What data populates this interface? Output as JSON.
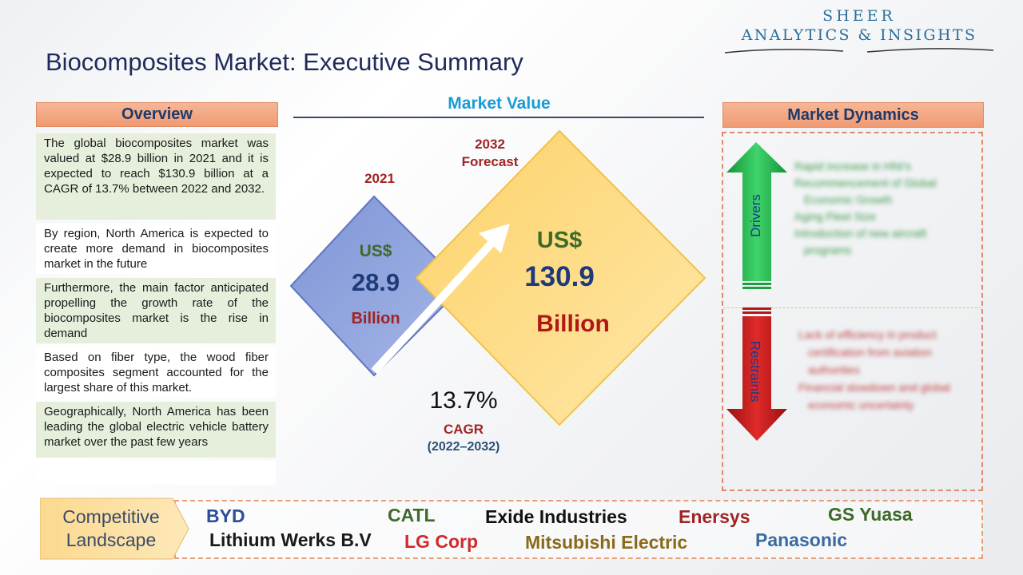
{
  "logo": {
    "line1": "SHEER",
    "line2": "ANALYTICS & INSIGHTS"
  },
  "title": "Biocomposites Market: Executive Summary",
  "overview": {
    "header": "Overview",
    "items": [
      "The global biocomposites market was valued at $28.9 billion in 2021 and it is expected to reach $130.9 billion at a CAGR of 13.7% between 2022 and 2032.",
      "By region, North America is expected to create more demand in biocomposites market in the future",
      "Furthermore, the main factor anticipated propelling the growth rate of the biocomposites market is the rise in demand",
      "Based on fiber type, the wood fiber composites segment accounted for the largest share of this market.",
      "Geographically, North America has been leading the global electric vehicle battery market over the past few years"
    ]
  },
  "market_value": {
    "title": "Market Value",
    "y2021": {
      "label": "2021",
      "currency": "US$",
      "value": "28.9",
      "unit": "Billion"
    },
    "y2032": {
      "label_line1": "2032",
      "label_line2": "Forecast",
      "currency": "US$",
      "value": "130.9",
      "unit": "Billion"
    },
    "cagr": {
      "value": "13.7%",
      "label": "CAGR",
      "period": "(2022–2032)"
    }
  },
  "dynamics": {
    "header": "Market Dynamics",
    "drivers_label": "Drivers",
    "restraints_label": "Restraints",
    "drivers": [
      "Rapid increase in HNI's",
      "Recommencement of Global Economic Growth",
      "Aging Fleet Size",
      "Introduction of new aircraft programs"
    ],
    "restraints": [
      "Lack of efficiency in product certification from aviation authorities",
      "Financial slowdown and global economic uncertainty"
    ]
  },
  "landscape": {
    "label_line1": "Competitive",
    "label_line2": "Landscape",
    "companies": [
      {
        "name": "BYD",
        "color": "#2a4f9a"
      },
      {
        "name": "CATL",
        "color": "#3e6a2a"
      },
      {
        "name": "Exide Industries",
        "color": "#111111"
      },
      {
        "name": "Enersys",
        "color": "#a02424"
      },
      {
        "name": "GS Yuasa",
        "color": "#3e6a2a"
      },
      {
        "name": "Lithium Werks B.V",
        "color": "#1a1a1a"
      },
      {
        "name": "LG Corp",
        "color": "#d22a2a"
      },
      {
        "name": "Mitsubishi Electric",
        "color": "#8a6a1a"
      },
      {
        "name": "Panasonic",
        "color": "#3a6aa0"
      }
    ]
  },
  "colors": {
    "accent_blue": "#1a9ad6",
    "header_orange": "#f4a882",
    "driver_green": "#1e9e3e",
    "restraint_red": "#b01818"
  }
}
